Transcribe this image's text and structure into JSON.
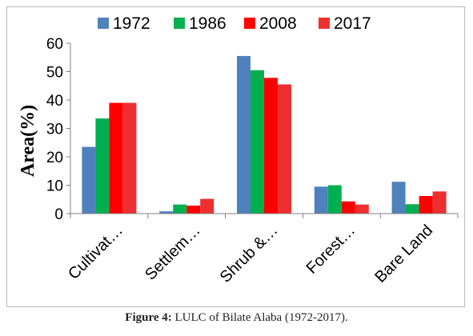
{
  "chart_data": {
    "type": "bar",
    "categories": [
      "Cultivat…",
      "Settlem…",
      "Shrub &…",
      "Forest…",
      "Bare Land"
    ],
    "series": [
      {
        "name": "1972",
        "values": [
          23.5,
          0.8,
          55.5,
          9.5,
          11.2
        ],
        "color": "#4f81bd"
      },
      {
        "name": "1986",
        "values": [
          33.5,
          3.2,
          50.5,
          10,
          3.3
        ],
        "color": "#00b050"
      },
      {
        "name": "2008",
        "values": [
          39,
          2.8,
          47.8,
          4.3,
          6.2
        ],
        "color": "#ff0000"
      },
      {
        "name": "2017",
        "values": [
          39,
          5.2,
          45.5,
          3.2,
          7.8
        ],
        "color": "#ee2f2f"
      }
    ],
    "ylabel": "Area(%)",
    "xlabel": "",
    "ylim": [
      0,
      60
    ],
    "yticks": [
      "0",
      "10",
      "20",
      "30",
      "40",
      "50",
      "60"
    ],
    "grid": false,
    "legend": "top"
  },
  "caption": {
    "label": "Figure 4:",
    "text": " LULC of Bilate Alaba (1972-2017)."
  }
}
